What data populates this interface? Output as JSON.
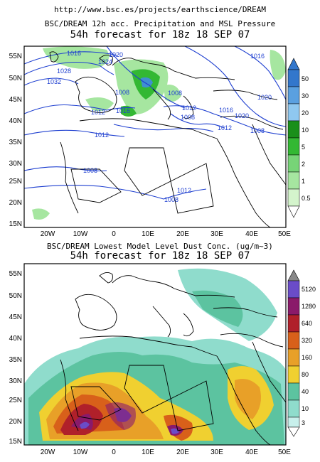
{
  "source_url": "http://www.bsc.es/projects/earthscience/DREAM",
  "colors": {
    "ocean_precip": "#ffffff",
    "land_line": "#000000",
    "isobar": "#1e3fd0",
    "precip_light": "#a6e6a0",
    "precip_mid": "#33b833",
    "precip_heavy": "#3f8fd0",
    "dust_bg": "#ffffff"
  },
  "top_map": {
    "title_line1": "BSC/DREAM 12h acc. Precipitation and MSL Pressure",
    "title_line2": "54h forecast for 18z 18 SEP 07",
    "lat_labels": [
      "55N",
      "50N",
      "45N",
      "40N",
      "35N",
      "30N",
      "25N",
      "20N",
      "15N"
    ],
    "lon_labels": [
      "20W",
      "10W",
      "0",
      "10E",
      "20E",
      "30E",
      "40E",
      "50E"
    ],
    "isobar_labels": [
      "1016",
      "1020",
      "1024",
      "1028",
      "1032",
      "1016",
      "1020",
      "1008",
      "1012",
      "1008",
      "1012",
      "1008",
      "1012",
      "1016",
      "1020",
      "1016",
      "1008",
      "1012",
      "1008",
      "1012",
      "1008"
    ],
    "colorbar": {
      "labels": [
        "50",
        "30",
        "20",
        "10",
        "5",
        "2",
        "1",
        "0.5"
      ],
      "colors": [
        "#3377cc",
        "#5aa0e0",
        "#8fc8f0",
        "#1a8f1a",
        "#33b833",
        "#77d477",
        "#a6e6a0",
        "#d4f4cc"
      ]
    }
  },
  "bottom_map": {
    "title_line1": "BSC/DREAM Lowest Model Level Dust Conc. (ug/m~3)",
    "title_line2": "54h forecast for 18z 18 SEP 07",
    "lat_labels": [
      "55N",
      "50N",
      "45N",
      "40N",
      "35N",
      "30N",
      "25N",
      "20N",
      "15N"
    ],
    "lon_labels": [
      "20W",
      "10W",
      "0",
      "10E",
      "20E",
      "30E",
      "40E",
      "50E"
    ],
    "colorbar": {
      "labels": [
        "5120",
        "1280",
        "640",
        "320",
        "160",
        "80",
        "40",
        "10",
        "3"
      ],
      "colors": [
        "#6a4cc8",
        "#8a1a6a",
        "#b0202a",
        "#d8601a",
        "#e8a028",
        "#f0d030",
        "#5cc3a0",
        "#8fdccc",
        "#c8f0ec"
      ]
    }
  }
}
